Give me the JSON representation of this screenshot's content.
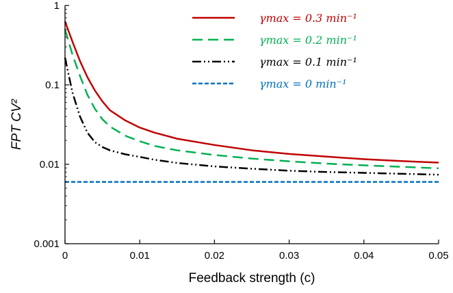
{
  "chart_data": {
    "type": "line",
    "xlabel": "Feedback strength (c)",
    "ylabel": "FPT CV²",
    "xlim": [
      0,
      0.05
    ],
    "ylim": [
      0.001,
      1
    ],
    "yscale": "log",
    "grid": false,
    "legend_position": "top-right",
    "x_ticks": [
      {
        "value": 0,
        "label": "0"
      },
      {
        "value": 0.01,
        "label": "0.01"
      },
      {
        "value": 0.02,
        "label": "0.02"
      },
      {
        "value": 0.03,
        "label": "0.03"
      },
      {
        "value": 0.04,
        "label": "0.04"
      },
      {
        "value": 0.05,
        "label": "0.05"
      }
    ],
    "y_ticks": [
      {
        "value": 0.001,
        "label": "0.001"
      },
      {
        "value": 0.01,
        "label": "0.01"
      },
      {
        "value": 0.1,
        "label": "0.1"
      },
      {
        "value": 1,
        "label": "1"
      }
    ],
    "x": [
      0,
      0.001,
      0.002,
      0.003,
      0.004,
      0.005,
      0.006,
      0.008,
      0.01,
      0.012,
      0.015,
      0.02,
      0.025,
      0.03,
      0.035,
      0.04,
      0.045,
      0.05
    ],
    "series": [
      {
        "name": "γmax = 0.3 min⁻¹",
        "color": "#c00000",
        "dash": "solid",
        "values": [
          0.63,
          0.35,
          0.2,
          0.125,
          0.085,
          0.062,
          0.048,
          0.036,
          0.029,
          0.025,
          0.021,
          0.0175,
          0.015,
          0.0135,
          0.0125,
          0.0116,
          0.011,
          0.0105
        ]
      },
      {
        "name": "γmax = 0.2 min⁻¹",
        "color": "#00b050",
        "dash": "long-dash",
        "values": [
          0.5,
          0.24,
          0.13,
          0.075,
          0.05,
          0.037,
          0.03,
          0.023,
          0.0195,
          0.017,
          0.015,
          0.0131,
          0.0118,
          0.0109,
          0.0102,
          0.0097,
          0.0093,
          0.0089
        ]
      },
      {
        "name": "γmax = 0.1 min⁻¹",
        "color": "#000000",
        "dash": "dash-dot-dot",
        "values": [
          0.22,
          0.08,
          0.04,
          0.025,
          0.019,
          0.0165,
          0.015,
          0.0134,
          0.0124,
          0.0114,
          0.0104,
          0.0094,
          0.0088,
          0.0083,
          0.008,
          0.0078,
          0.0076,
          0.0074
        ]
      },
      {
        "name": "γmax = 0 min⁻¹",
        "color": "#0070c0",
        "dash": "short-dash",
        "values": [
          0.006,
          0.006,
          0.006,
          0.006,
          0.006,
          0.006,
          0.006,
          0.006,
          0.006,
          0.006,
          0.006,
          0.006,
          0.006,
          0.006,
          0.006,
          0.006,
          0.006,
          0.006
        ]
      }
    ]
  }
}
